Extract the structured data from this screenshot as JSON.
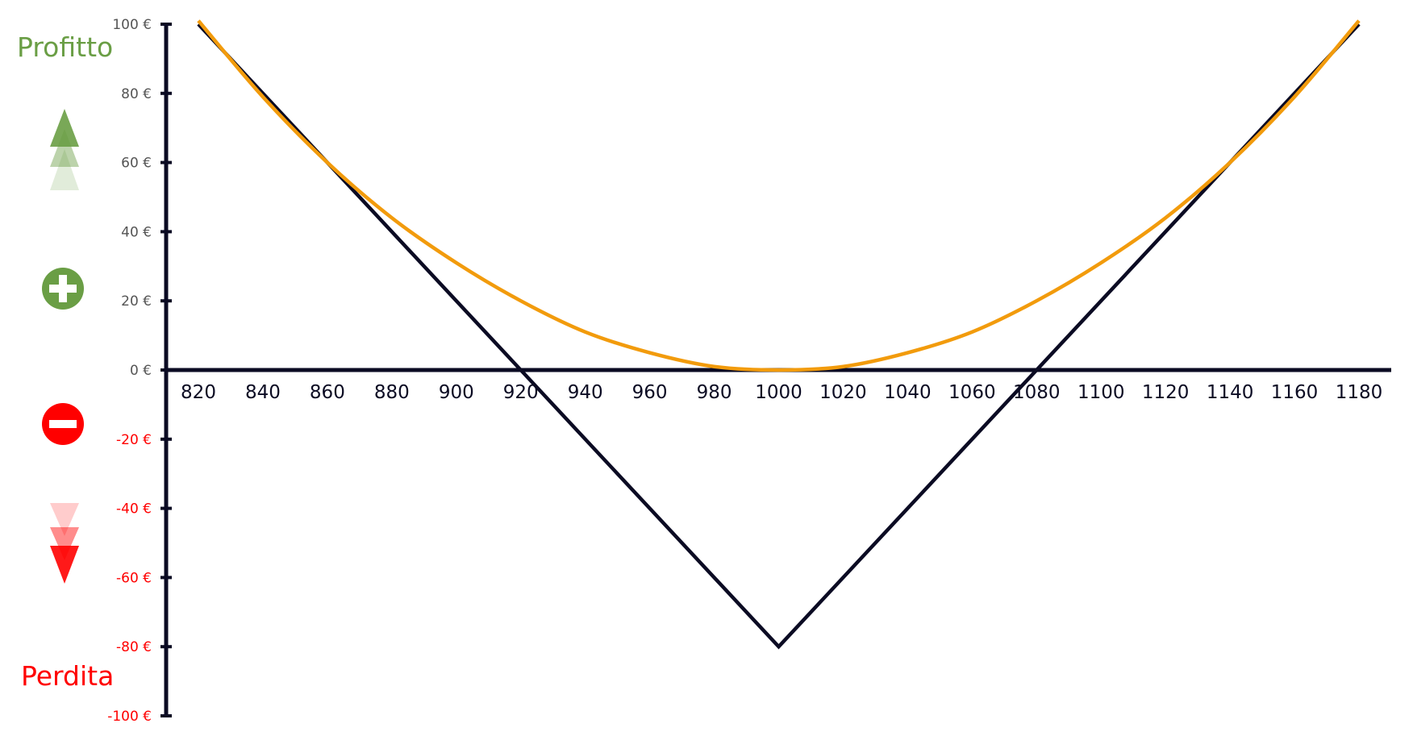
{
  "colors": {
    "axis": "#0b0b23",
    "positive": "#6a9e45",
    "negative": "#ff0000",
    "curve": "#f29b0c",
    "payoff": "#0b0b23",
    "ytick_positive": "#555555"
  },
  "icons": {
    "up": "triangle-up-icon",
    "plus": "plus-circle-icon",
    "minus": "minus-circle-icon",
    "down": "triangle-down-icon"
  },
  "labels": {
    "profit": "Profitto",
    "loss": "Perdita"
  },
  "chart_data": {
    "type": "line",
    "title": "",
    "xlabel": "",
    "ylabel": "",
    "xlim": [
      810,
      1190
    ],
    "ylim": [
      -100,
      100
    ],
    "x_ticks": [
      820,
      840,
      860,
      880,
      900,
      920,
      940,
      960,
      980,
      1000,
      1020,
      1040,
      1060,
      1080,
      1100,
      1120,
      1140,
      1160,
      1180
    ],
    "x_tick_labels": [
      "820",
      "840",
      "860",
      "880",
      "900",
      "920",
      "940",
      "960",
      "980",
      "1000",
      "1020",
      "1040",
      "1060",
      "1080",
      "1100",
      "1120",
      "1140",
      "1160",
      "1180"
    ],
    "y_ticks": [
      100,
      80,
      60,
      40,
      20,
      0,
      -20,
      -40,
      -60,
      -80,
      -100
    ],
    "y_tick_labels": [
      "100 €",
      "80 €",
      "60 €",
      "40 €",
      "20 €",
      "0 €",
      "-20 €",
      "-40 €",
      "-60 €",
      "-80 €",
      "-100 €"
    ],
    "series": [
      {
        "color": "#0b0b23",
        "x": [
          820,
          1000,
          1180
        ],
        "y": [
          100,
          -80,
          100
        ]
      },
      {
        "color": "#f29b0c",
        "x": [
          820,
          840,
          860,
          880,
          900,
          920,
          940,
          960,
          980,
          1000,
          1020,
          1040,
          1060,
          1080,
          1100,
          1120,
          1140,
          1160,
          1180
        ],
        "y": [
          101,
          79,
          60,
          44,
          31,
          20,
          11,
          5,
          1,
          0,
          1,
          5,
          11,
          20,
          31,
          44,
          60,
          79,
          101
        ]
      }
    ]
  }
}
